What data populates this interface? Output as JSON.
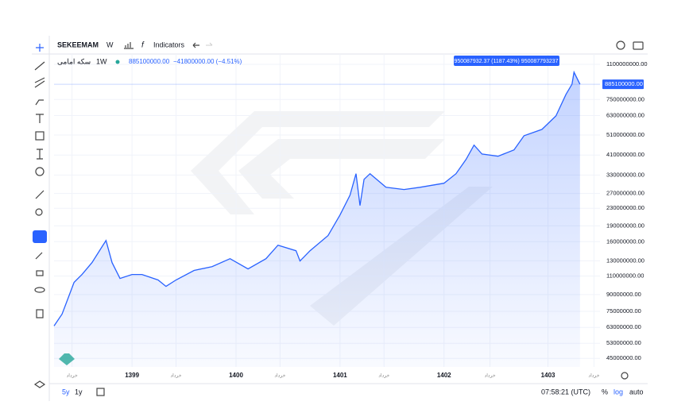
{
  "toolbar": {
    "symbol": "SEKEEMAM",
    "interval": "W",
    "indicators": "Indicators"
  },
  "legend": {
    "interval": "1W",
    "price": "885100000.00",
    "change": "−41800000.00 (−4.51%)"
  },
  "tooltip": "950087932.37 (1187.43%) 950087793237",
  "bottom": {
    "ranges": [
      "5y",
      "1y"
    ],
    "clock": "07:58:21 (UTC)",
    "percent": "%",
    "log": "log",
    "auto": "auto"
  },
  "chart_data": {
    "type": "line",
    "log_scale": true,
    "grid": true,
    "x": [
      0,
      4,
      10,
      14,
      19,
      24,
      26,
      29,
      33,
      39,
      44,
      52,
      56,
      61,
      70,
      79,
      88,
      97,
      106,
      112,
      121,
      123,
      128,
      137,
      143,
      148,
      151,
      153,
      155,
      158,
      166,
      175,
      183,
      195,
      201,
      206,
      210,
      214,
      222,
      230,
      235,
      244,
      251,
      256,
      259,
      260,
      263
    ],
    "series": [
      {
        "name": "سکه امامی",
        "color": "#2962ff",
        "values": [
          64000000,
          72800000,
          102800000,
          112000000,
          127500000,
          151500000,
          162000000,
          127500000,
          107300000,
          112000000,
          112000000,
          105500000,
          98400000,
          105500000,
          117000000,
          122000000,
          133000000,
          119000000,
          133000000,
          154000000,
          145000000,
          129700000,
          145000000,
          171000000,
          214000000,
          265000000,
          335000000,
          237000000,
          315000000,
          335000000,
          289000000,
          282000000,
          289000000,
          302000000,
          335000000,
          391000000,
          457000000,
          415000000,
          405000000,
          434000000,
          506000000,
          542000000,
          628000000,
          793000000,
          887000000,
          1009000000,
          885100000
        ]
      }
    ],
    "last_price": {
      "value": 885100000,
      "label": "885100000.00"
    },
    "xlim": [
      0,
      273
    ],
    "ylim": [
      41000000,
      1230000000
    ],
    "xticks": [
      {
        "value": 9,
        "label": "خرداد"
      },
      {
        "value": 39,
        "label": "1399"
      },
      {
        "value": 61,
        "label": "خرداد"
      },
      {
        "value": 91,
        "label": "1400"
      },
      {
        "value": 113,
        "label": "خرداد"
      },
      {
        "value": 143,
        "label": "1401"
      },
      {
        "value": 165,
        "label": "خرداد"
      },
      {
        "value": 195,
        "label": "1402"
      },
      {
        "value": 218,
        "label": "خرداد"
      },
      {
        "value": 247,
        "label": "1403"
      },
      {
        "value": 270,
        "label": "خرداد"
      }
    ],
    "yticks": [
      {
        "value": 1100000000,
        "label": "1100000000.00"
      },
      {
        "value": 750000000,
        "label": "750000000.00"
      },
      {
        "value": 630000000,
        "label": "630000000.00"
      },
      {
        "value": 510000000,
        "label": "510000000.00"
      },
      {
        "value": 410000000,
        "label": "410000000.00"
      },
      {
        "value": 330000000,
        "label": "330000000.00"
      },
      {
        "value": 270000000,
        "label": "270000000.00"
      },
      {
        "value": 230000000,
        "label": "230000000.00"
      },
      {
        "value": 190000000,
        "label": "190000000.00"
      },
      {
        "value": 160000000,
        "label": "160000000.00"
      },
      {
        "value": 130000000,
        "label": "130000000.00"
      },
      {
        "value": 110000000,
        "label": "110000000.00"
      },
      {
        "value": 90000000,
        "label": "90000000.00"
      },
      {
        "value": 75000000,
        "label": "75000000.00"
      },
      {
        "value": 63000000,
        "label": "63000000.00"
      },
      {
        "value": 53000000,
        "label": "53000000.00"
      },
      {
        "value": 45000000,
        "label": "45000000.00"
      }
    ]
  }
}
